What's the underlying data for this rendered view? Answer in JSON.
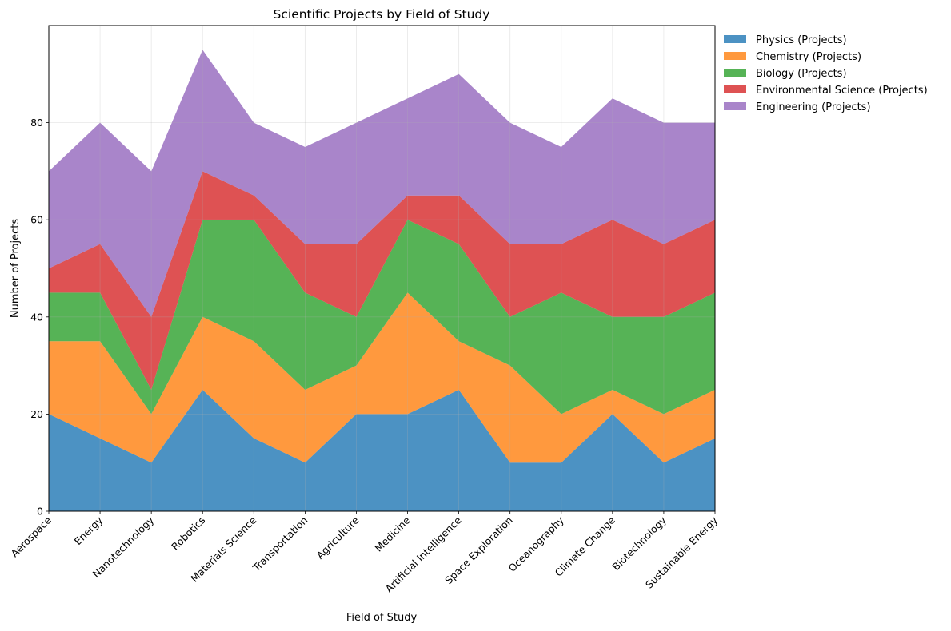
{
  "chart_data": {
    "type": "area",
    "stacked": true,
    "title": "Scientific Projects by Field of Study",
    "xlabel": "Field of Study",
    "ylabel": "Number of Projects",
    "categories": [
      "Aerospace",
      "Energy",
      "Nanotechnology",
      "Robotics",
      "Materials Science",
      "Transportation",
      "Agriculture",
      "Medicine",
      "Artificial Intelligence",
      "Space Exploration",
      "Oceanography",
      "Climate Change",
      "Biotechnology",
      "Sustainable Energy"
    ],
    "series": [
      {
        "name": "Physics (Projects)",
        "color": "#1f77b4",
        "values": [
          20,
          15,
          10,
          25,
          15,
          10,
          20,
          20,
          25,
          10,
          10,
          20,
          10,
          15
        ]
      },
      {
        "name": "Chemistry (Projects)",
        "color": "#ff7f0e",
        "values": [
          15,
          20,
          10,
          15,
          20,
          15,
          10,
          25,
          10,
          20,
          10,
          5,
          10,
          10
        ]
      },
      {
        "name": "Biology (Projects)",
        "color": "#2ca02c",
        "values": [
          10,
          10,
          5,
          20,
          25,
          20,
          10,
          15,
          20,
          10,
          25,
          15,
          20,
          20
        ]
      },
      {
        "name": "Environmental Science (Projects)",
        "color": "#d62728",
        "values": [
          5,
          10,
          15,
          10,
          5,
          10,
          15,
          5,
          10,
          15,
          10,
          20,
          15,
          15
        ]
      },
      {
        "name": "Engineering (Projects)",
        "color": "#9467bd",
        "values": [
          20,
          25,
          30,
          25,
          15,
          20,
          25,
          20,
          25,
          25,
          20,
          25,
          25,
          20
        ]
      }
    ],
    "ylim": [
      0,
      100
    ],
    "yticks": [
      0,
      20,
      40,
      60,
      80
    ],
    "grid": true,
    "legend_position": "outside-top-right",
    "alpha": 0.8
  }
}
